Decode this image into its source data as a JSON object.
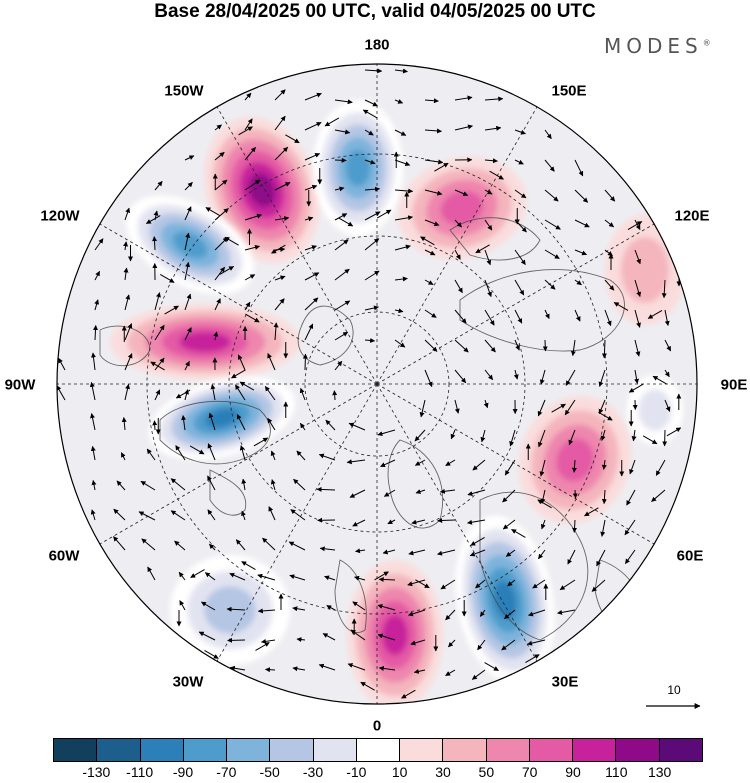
{
  "title": "Base 28/04/2025 00 UTC, valid 04/05/2025 00 UTC",
  "brand": {
    "name": "MODES",
    "mark": "®"
  },
  "map": {
    "projection": "north-polar-stereographic",
    "field": "shaded anomaly with wind vectors",
    "longitude_labels": [
      {
        "id": "180",
        "text": "180"
      },
      {
        "id": "150e",
        "text": "150E"
      },
      {
        "id": "120e",
        "text": "120E"
      },
      {
        "id": "90e",
        "text": "90E"
      },
      {
        "id": "60e",
        "text": "60E"
      },
      {
        "id": "30e",
        "text": "30E"
      },
      {
        "id": "0",
        "text": "0"
      },
      {
        "id": "30w",
        "text": "30W"
      },
      {
        "id": "60w",
        "text": "60W"
      },
      {
        "id": "90w",
        "text": "90W"
      },
      {
        "id": "120w",
        "text": "120W"
      },
      {
        "id": "150w",
        "text": "150W"
      }
    ],
    "vector_reference": {
      "label": "10"
    }
  },
  "colorbar": {
    "colors": [
      "#123f5c",
      "#1d5f8c",
      "#2c7fb8",
      "#4d9ccc",
      "#7eb4dc",
      "#b4c6e4",
      "#e2e3f0",
      "#ffffff",
      "#fadcdc",
      "#f4b5bd",
      "#ee86ad",
      "#e45aa4",
      "#c7219b",
      "#8e0a88",
      "#5b0a78"
    ],
    "tick_labels": [
      "-130",
      "-110",
      "-90",
      "-70",
      "-50",
      "-30",
      "-10",
      "10",
      "30",
      "50",
      "70",
      "90",
      "110",
      "130"
    ]
  },
  "anomalies": [
    {
      "label": "pos-150w",
      "sign": "+",
      "level": 110
    },
    {
      "label": "neg-170w",
      "sign": "-",
      "level": -90
    },
    {
      "label": "pos-160e",
      "sign": "+",
      "level": 70
    },
    {
      "label": "neg-120w",
      "sign": "-",
      "level": -90
    },
    {
      "label": "pos-95w",
      "sign": "+",
      "level": 90
    },
    {
      "label": "neg-80w",
      "sign": "-",
      "level": -110
    },
    {
      "label": "pos-60e",
      "sign": "+",
      "level": 70
    },
    {
      "label": "pos-0",
      "sign": "+",
      "level": 90
    },
    {
      "label": "neg-25e",
      "sign": "-",
      "level": -110
    },
    {
      "label": "neg-45w",
      "sign": "-",
      "level": -50
    },
    {
      "label": "pos-110e",
      "sign": "+",
      "level": 30
    },
    {
      "label": "neg-100e",
      "sign": "-",
      "level": -30
    }
  ]
}
